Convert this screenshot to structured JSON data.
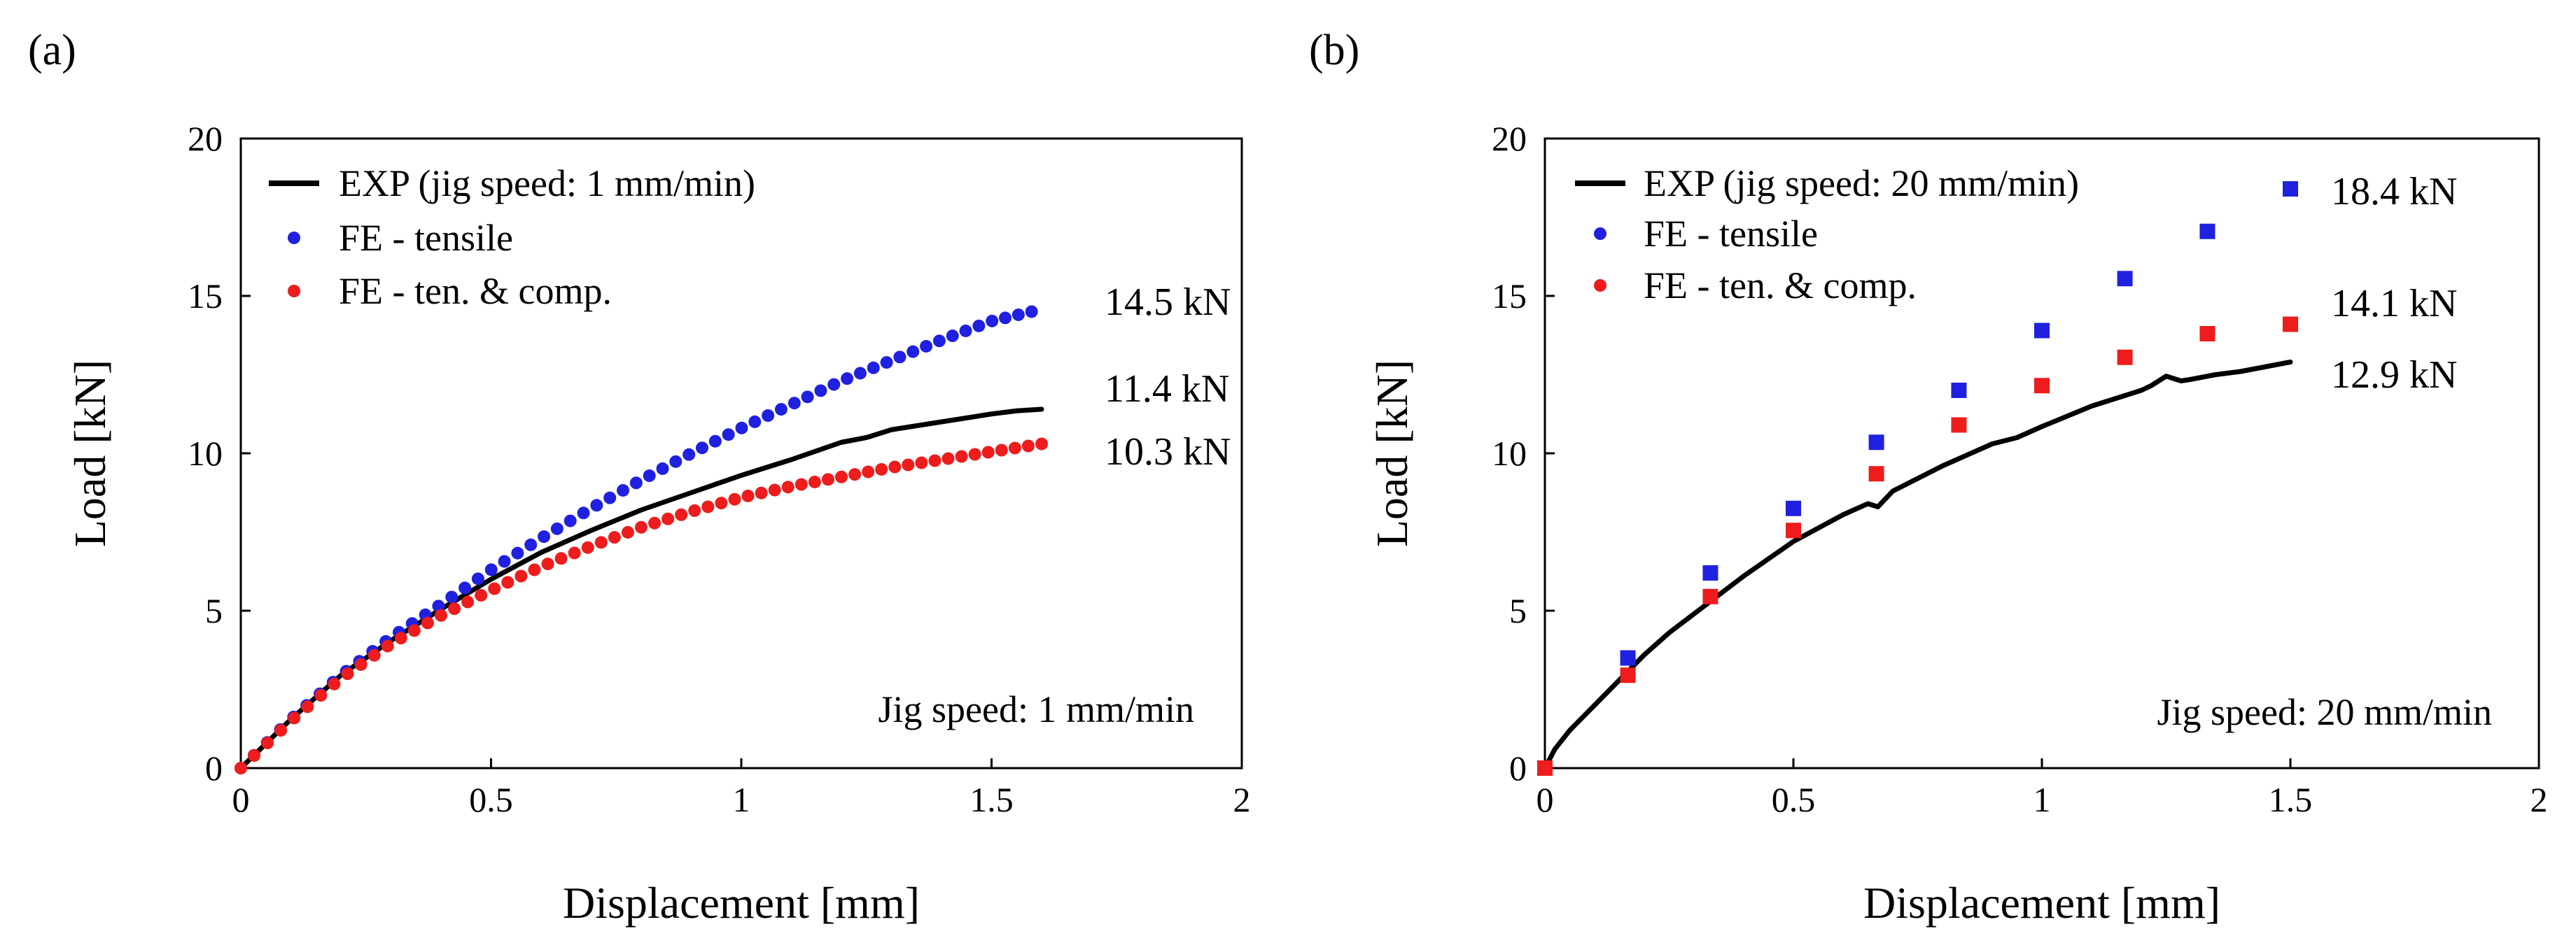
{
  "figure": {
    "panels": [
      {
        "panel_label": "(a)",
        "legend": [
          "EXP (jig speed:  1 mm/min)",
          "FE - tensile",
          "FE - ten. & comp."
        ],
        "note": "Jig speed:  1 mm/min",
        "end_labels": [
          "14.5 kN",
          "11.4 kN",
          "10.3 kN"
        ]
      },
      {
        "panel_label": "(b)",
        "legend": [
          "EXP (jig speed:  20 mm/min)",
          "FE - tensile",
          "FE - ten. & comp."
        ],
        "note": "Jig speed:  20 mm/min",
        "end_labels": [
          "18.4 kN",
          "14.1 kN",
          "12.9 kN"
        ]
      }
    ]
  },
  "chart_data": [
    {
      "type": "line",
      "title": "",
      "panel_label": "(a)",
      "xlabel": "Displacement [mm]",
      "ylabel": "Load [kN]",
      "xlim": [
        0,
        2
      ],
      "ylim": [
        0,
        20
      ],
      "xticks": [
        0,
        0.5,
        1,
        1.5,
        2
      ],
      "yticks": [
        0,
        5,
        10,
        15,
        20
      ],
      "xtick_labels": [
        "0",
        "0.5",
        "1",
        "1.5",
        "2"
      ],
      "ytick_labels": [
        "0",
        "5",
        "10",
        "15",
        "20"
      ],
      "grid": false,
      "legend_position": "top-left",
      "series": [
        {
          "name": "EXP (jig speed:  1 mm/min)",
          "style": "line",
          "color": "#000000",
          "x": [
            0,
            0.1,
            0.2,
            0.3,
            0.4,
            0.5,
            0.6,
            0.7,
            0.8,
            0.9,
            1.0,
            1.1,
            1.2,
            1.25,
            1.3,
            1.4,
            1.5,
            1.55,
            1.6
          ],
          "y": [
            0,
            1.55,
            2.95,
            4.05,
            5.05,
            6.0,
            6.85,
            7.55,
            8.2,
            8.75,
            9.3,
            9.8,
            10.35,
            10.5,
            10.75,
            11.0,
            11.25,
            11.35,
            11.4
          ]
        },
        {
          "name": "FE - tensile",
          "style": "circle",
          "color": "#2020e0",
          "x": [
            0,
            0.1,
            0.2,
            0.3,
            0.4,
            0.5,
            0.6,
            0.7,
            0.8,
            0.9,
            1.0,
            1.1,
            1.2,
            1.3,
            1.4,
            1.5,
            1.58
          ],
          "y": [
            0,
            1.55,
            2.95,
            4.15,
            5.2,
            6.3,
            7.3,
            8.25,
            9.15,
            10.0,
            10.8,
            11.55,
            12.3,
            12.95,
            13.6,
            14.2,
            14.5
          ]
        },
        {
          "name": "FE - ten. & comp.",
          "style": "circle",
          "color": "#ee1c1c",
          "x": [
            0,
            0.1,
            0.2,
            0.3,
            0.4,
            0.5,
            0.6,
            0.7,
            0.8,
            0.9,
            1.0,
            1.1,
            1.2,
            1.3,
            1.4,
            1.5,
            1.6
          ],
          "y": [
            0,
            1.5,
            2.85,
            3.95,
            4.85,
            5.65,
            6.4,
            7.05,
            7.65,
            8.15,
            8.6,
            8.95,
            9.25,
            9.55,
            9.8,
            10.05,
            10.3
          ]
        }
      ],
      "annotations": [
        {
          "text": "14.5 kN",
          "x": 1.58,
          "y": 14.5
        },
        {
          "text": "11.4 kN",
          "x": 1.6,
          "y": 11.4
        },
        {
          "text": "10.3 kN",
          "x": 1.6,
          "y": 10.3
        },
        {
          "text": "Jig speed:  1 mm/min"
        }
      ]
    },
    {
      "type": "line",
      "title": "",
      "panel_label": "(b)",
      "xlabel": "Displacement [mm]",
      "ylabel": "Load [kN]",
      "xlim": [
        0,
        2
      ],
      "ylim": [
        0,
        20
      ],
      "xticks": [
        0,
        0.5,
        1,
        1.5,
        2
      ],
      "yticks": [
        0,
        5,
        10,
        15,
        20
      ],
      "xtick_labels": [
        "0",
        "0.5",
        "1",
        "1.5",
        "2"
      ],
      "ytick_labels": [
        "0",
        "5",
        "10",
        "15",
        "20"
      ],
      "grid": false,
      "legend_position": "top-left",
      "series": [
        {
          "name": "EXP (jig speed:  20 mm/min)",
          "style": "line",
          "color": "#000000",
          "x": [
            0,
            0.02,
            0.05,
            0.1,
            0.15,
            0.2,
            0.25,
            0.3,
            0.35,
            0.4,
            0.5,
            0.6,
            0.65,
            0.67,
            0.7,
            0.8,
            0.9,
            0.95,
            1.0,
            1.1,
            1.2,
            1.22,
            1.25,
            1.28,
            1.3,
            1.35,
            1.4,
            1.45,
            1.5
          ],
          "y": [
            0,
            0.6,
            1.2,
            2.0,
            2.8,
            3.6,
            4.3,
            4.9,
            5.5,
            6.1,
            7.2,
            8.05,
            8.4,
            8.3,
            8.8,
            9.6,
            10.3,
            10.5,
            10.85,
            11.5,
            12.0,
            12.15,
            12.45,
            12.3,
            12.35,
            12.5,
            12.6,
            12.75,
            12.9
          ]
        },
        {
          "name": "FE - tensile",
          "style": "square",
          "color": "#2020e0",
          "x": [
            0,
            0.167,
            0.333,
            0.5,
            0.667,
            0.833,
            1.0,
            1.167,
            1.333,
            1.5
          ],
          "y": [
            0,
            3.5,
            6.2,
            8.25,
            10.35,
            12.0,
            13.9,
            15.55,
            17.05,
            18.4
          ]
        },
        {
          "name": "FE - ten. & comp.",
          "style": "square",
          "color": "#ee1c1c",
          "x": [
            0,
            0.167,
            0.333,
            0.5,
            0.667,
            0.833,
            1.0,
            1.167,
            1.333,
            1.5
          ],
          "y": [
            0,
            2.95,
            5.45,
            7.55,
            9.35,
            10.9,
            12.15,
            13.05,
            13.8,
            14.1
          ]
        }
      ],
      "annotations": [
        {
          "text": "18.4 kN",
          "x": 1.5,
          "y": 18.4
        },
        {
          "text": "14.1 kN",
          "x": 1.5,
          "y": 14.1
        },
        {
          "text": "12.9 kN",
          "x": 1.5,
          "y": 12.9
        },
        {
          "text": "Jig speed:  20 mm/min"
        }
      ]
    }
  ]
}
